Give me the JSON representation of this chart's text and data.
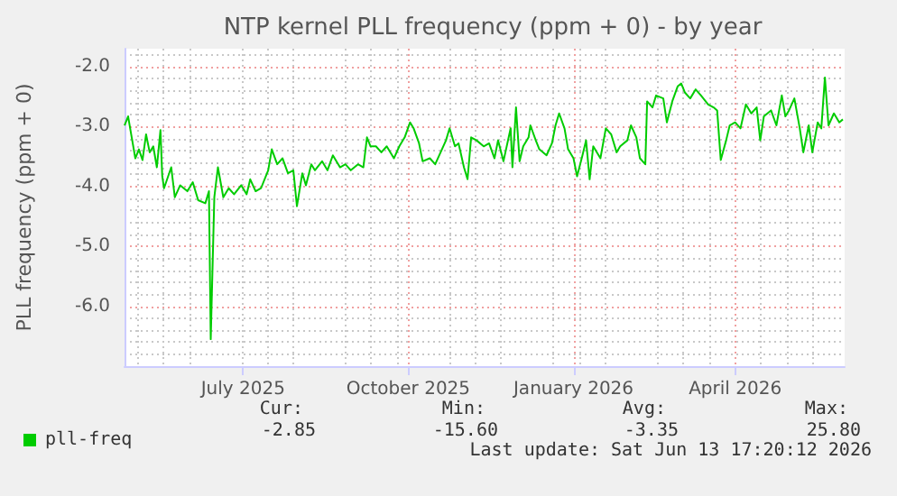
{
  "chart_data": {
    "type": "line",
    "title": "NTP kernel PLL frequency (ppm + 0) - by year",
    "ylabel": "PLL frequency (ppm + 0)",
    "xlim": [
      "2025-04-26",
      "2026-06-01"
    ],
    "xticks": [
      {
        "value": "2025-07-01",
        "label": "July 2025"
      },
      {
        "value": "2025-10-01",
        "label": "October 2025"
      },
      {
        "value": "2026-01-01",
        "label": "January 2026"
      },
      {
        "value": "2026-04-01",
        "label": "April 2026"
      }
    ],
    "ylim": [
      -7.0,
      -1.7
    ],
    "yticks": [
      {
        "value": -6,
        "label": "-6.0"
      },
      {
        "value": -5,
        "label": "-5.0"
      },
      {
        "value": -4,
        "label": "-4.0"
      },
      {
        "value": -3,
        "label": "-3.0"
      },
      {
        "value": -2,
        "label": "-2.0"
      }
    ],
    "grid": true,
    "legend": "bottom left",
    "marker": "none",
    "line_style": "solid",
    "x": [
      "2025-04-26",
      "2025-04-28",
      "2025-04-30",
      "2025-05-02",
      "2025-05-04",
      "2025-05-06",
      "2025-05-08",
      "2025-05-10",
      "2025-05-12",
      "2025-05-14",
      "2025-05-16",
      "2025-05-17",
      "2025-05-18",
      "2025-05-22",
      "2025-05-24",
      "2025-05-27",
      "2025-05-31",
      "2025-06-03",
      "2025-06-06",
      "2025-06-10",
      "2025-06-12",
      "2025-06-13",
      "2025-06-15",
      "2025-06-17",
      "2025-06-20",
      "2025-06-23",
      "2025-06-26",
      "2025-06-30",
      "2025-07-03",
      "2025-07-05",
      "2025-07-08",
      "2025-07-11",
      "2025-07-15",
      "2025-07-17",
      "2025-07-20",
      "2025-07-23",
      "2025-07-26",
      "2025-07-29",
      "2025-07-31",
      "2025-08-03",
      "2025-08-05",
      "2025-08-08",
      "2025-08-10",
      "2025-08-14",
      "2025-08-17",
      "2025-08-20",
      "2025-08-24",
      "2025-08-27",
      "2025-08-30",
      "2025-09-03",
      "2025-09-06",
      "2025-09-08",
      "2025-09-10",
      "2025-09-13",
      "2025-09-16",
      "2025-09-19",
      "2025-09-23",
      "2025-09-26",
      "2025-09-29",
      "2025-10-02",
      "2025-10-04",
      "2025-10-07",
      "2025-10-09",
      "2025-10-13",
      "2025-10-16",
      "2025-10-19",
      "2025-10-22",
      "2025-10-24",
      "2025-10-27",
      "2025-10-29",
      "2025-11-01",
      "2025-11-03",
      "2025-11-05",
      "2025-11-08",
      "2025-11-12",
      "2025-11-15",
      "2025-11-18",
      "2025-11-20",
      "2025-11-23",
      "2025-11-27",
      "2025-11-28",
      "2025-11-30",
      "2025-12-02",
      "2025-12-04",
      "2025-12-07",
      "2025-12-08",
      "2025-12-11",
      "2025-12-13",
      "2025-12-17",
      "2025-12-20",
      "2025-12-22",
      "2025-12-24",
      "2025-12-27",
      "2025-12-29",
      "2026-01-01",
      "2026-01-03",
      "2026-01-06",
      "2026-01-08",
      "2026-01-10",
      "2026-01-12",
      "2026-01-16",
      "2026-01-19",
      "2026-01-22",
      "2026-01-25",
      "2026-01-27",
      "2026-01-31",
      "2026-02-02",
      "2026-02-05",
      "2026-02-07",
      "2026-02-10",
      "2026-02-11",
      "2026-02-14",
      "2026-02-16",
      "2026-02-20",
      "2026-02-22",
      "2026-02-25",
      "2026-02-28",
      "2026-03-02",
      "2026-03-04",
      "2026-03-07",
      "2026-03-10",
      "2026-03-13",
      "2026-03-17",
      "2026-03-20",
      "2026-03-22",
      "2026-03-24",
      "2026-03-27",
      "2026-03-29",
      "2026-04-01",
      "2026-04-04",
      "2026-04-07",
      "2026-04-10",
      "2026-04-13",
      "2026-04-15",
      "2026-04-17",
      "2026-04-21",
      "2026-04-24",
      "2026-04-27",
      "2026-04-29",
      "2026-05-01",
      "2026-05-04",
      "2026-05-07",
      "2026-05-09",
      "2026-05-12",
      "2026-05-14",
      "2026-05-17",
      "2026-05-19",
      "2026-05-21",
      "2026-05-23",
      "2026-05-26",
      "2026-05-27",
      "2026-05-29",
      "2026-05-31"
    ],
    "series": [
      {
        "name": "pll-freq",
        "color": "#00cc00",
        "values": [
          -2.98,
          -2.83,
          -3.18,
          -3.53,
          -3.38,
          -3.56,
          -3.13,
          -3.43,
          -3.33,
          -3.68,
          -3.06,
          -3.83,
          -4.03,
          -3.68,
          -4.18,
          -3.98,
          -4.08,
          -3.93,
          -4.23,
          -4.28,
          -4.08,
          -6.55,
          -4.18,
          -3.68,
          -4.18,
          -4.03,
          -4.13,
          -3.98,
          -4.13,
          -3.88,
          -4.08,
          -4.03,
          -3.73,
          -3.38,
          -3.63,
          -3.53,
          -3.78,
          -3.73,
          -4.33,
          -3.78,
          -3.98,
          -3.63,
          -3.73,
          -3.58,
          -3.73,
          -3.48,
          -3.68,
          -3.63,
          -3.73,
          -3.63,
          -3.68,
          -3.18,
          -3.33,
          -3.33,
          -3.43,
          -3.33,
          -3.53,
          -3.33,
          -3.18,
          -2.93,
          -3.03,
          -3.28,
          -3.58,
          -3.53,
          -3.63,
          -3.43,
          -3.23,
          -3.03,
          -3.33,
          -3.28,
          -3.68,
          -3.88,
          -3.18,
          -3.23,
          -3.33,
          -3.28,
          -3.53,
          -3.23,
          -3.58,
          -3.03,
          -3.68,
          -2.68,
          -3.58,
          -3.33,
          -3.18,
          -2.98,
          -3.23,
          -3.38,
          -3.48,
          -3.28,
          -2.98,
          -2.78,
          -3.03,
          -3.38,
          -3.53,
          -3.83,
          -3.48,
          -3.23,
          -3.88,
          -3.33,
          -3.53,
          -3.03,
          -3.13,
          -3.43,
          -3.33,
          -3.23,
          -2.98,
          -3.18,
          -3.53,
          -3.63,
          -2.58,
          -2.68,
          -2.48,
          -2.53,
          -2.93,
          -2.58,
          -2.33,
          -2.28,
          -2.43,
          -2.53,
          -2.38,
          -2.48,
          -2.63,
          -2.68,
          -2.73,
          -3.56,
          -3.23,
          -2.98,
          -2.93,
          -3.03,
          -2.63,
          -2.78,
          -2.68,
          -3.23,
          -2.83,
          -2.73,
          -2.98,
          -2.48,
          -2.83,
          -2.73,
          -2.53,
          -3.03,
          -3.43,
          -2.98,
          -3.43,
          -2.93,
          -3.03,
          -2.18,
          -2.98,
          -2.78,
          -2.83,
          -2.93,
          -2.88
        ]
      }
    ],
    "annotations": [
      "Cur:",
      "Min:",
      "Avg:",
      "Max:",
      "-2.85",
      "-15.60",
      "-3.35",
      "25.80",
      "Last update: Sat Jun 13 17:20:12 2026"
    ]
  }
}
